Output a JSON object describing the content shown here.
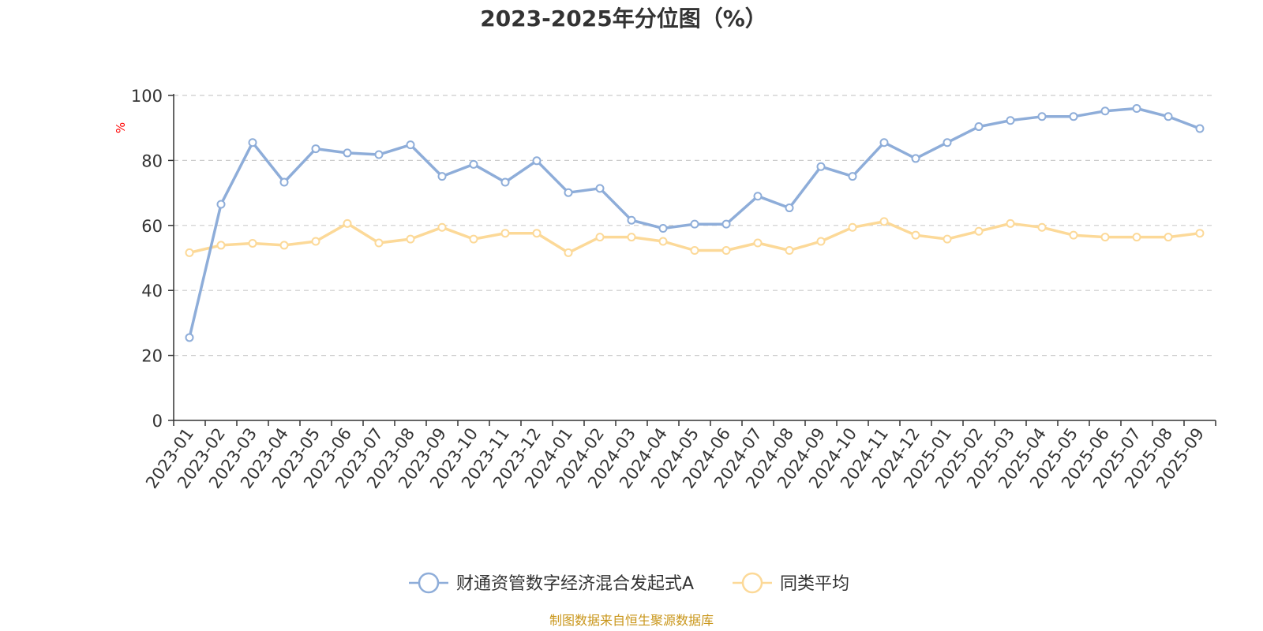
{
  "chart_data": {
    "type": "line",
    "title": "2023-2025年分位图（%）",
    "ylabel": "%",
    "xlabel": "",
    "ylim": [
      0,
      100
    ],
    "yticks": [
      0,
      20,
      40,
      60,
      80,
      100
    ],
    "grid": true,
    "legend_position": "bottom",
    "categories": [
      "2023-01",
      "2023-02",
      "2023-03",
      "2023-04",
      "2023-05",
      "2023-06",
      "2023-07",
      "2023-08",
      "2023-09",
      "2023-10",
      "2023-11",
      "2023-12",
      "2024-01",
      "2024-02",
      "2024-03",
      "2024-04",
      "2024-05",
      "2024-06",
      "2024-07",
      "2024-08",
      "2024-09",
      "2024-10",
      "2024-11",
      "2024-12",
      "2025-01",
      "2025-02",
      "2025-03",
      "2025-04",
      "2025-05",
      "2025-06",
      "2025-07",
      "2025-08",
      "2025-09"
    ],
    "series": [
      {
        "name": "财通资管数字经济混合发起式A",
        "color": "#8eadd9",
        "values": [
          25.5,
          66.5,
          85.5,
          73.3,
          83.6,
          82.3,
          81.8,
          84.8,
          75.1,
          78.8,
          73.3,
          79.9,
          70.1,
          71.4,
          61.6,
          59.1,
          60.4,
          60.4,
          69.0,
          65.4,
          78.1,
          75.1,
          85.5,
          80.6,
          85.5,
          90.4,
          92.3,
          93.5,
          93.5,
          95.2,
          96.0,
          93.5,
          89.8
        ]
      },
      {
        "name": "同类平均",
        "color": "#fcd998",
        "values": [
          51.6,
          53.9,
          54.5,
          53.9,
          55.1,
          60.6,
          54.6,
          55.8,
          59.4,
          55.8,
          57.6,
          57.6,
          51.6,
          56.4,
          56.4,
          55.1,
          52.3,
          52.3,
          54.6,
          52.3,
          55.1,
          59.4,
          61.2,
          57.0,
          55.8,
          58.2,
          60.6,
          59.4,
          57.0,
          56.4,
          56.4,
          56.4,
          57.6
        ]
      }
    ]
  },
  "unit_color": "#ff0000",
  "source": {
    "text": "制图数据来自恒生聚源数据库",
    "color": "#c9961a"
  }
}
